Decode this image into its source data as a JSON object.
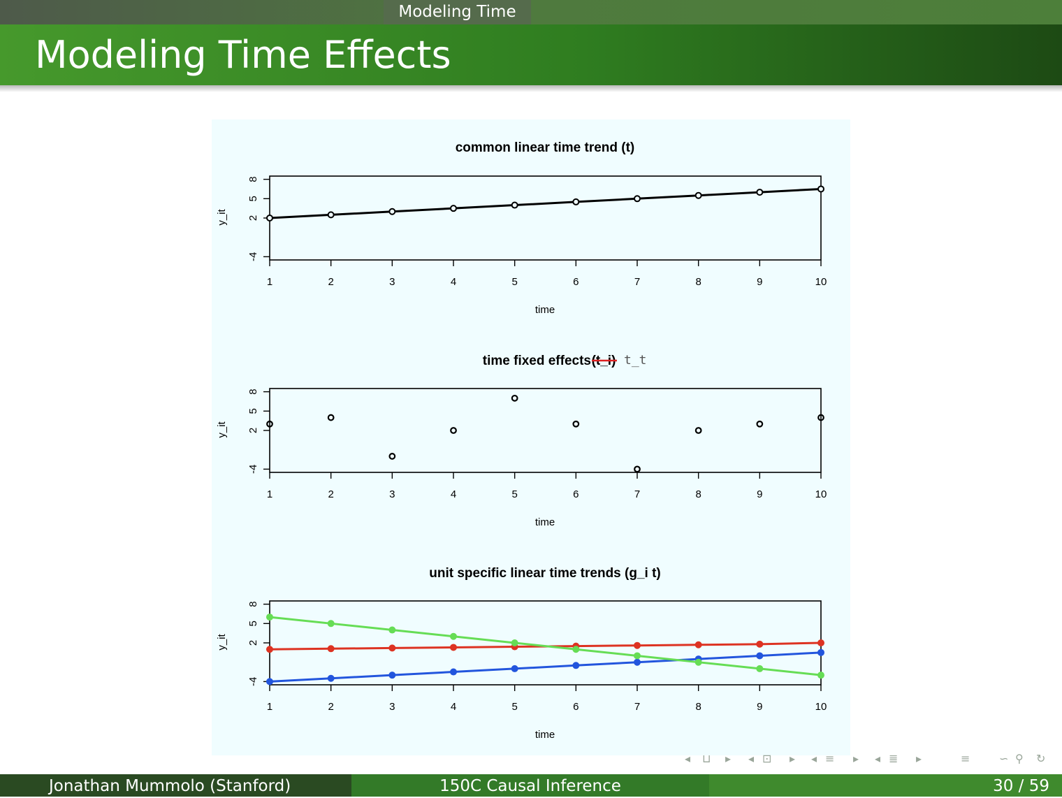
{
  "header": {
    "section": "Modeling Time",
    "title": "Modeling Time Effects"
  },
  "footer": {
    "author": "Jonathan Mummolo  (Stanford)",
    "course": "150C Causal Inference",
    "page": "30 / 59"
  },
  "nav_icons": [
    "frame-prev-icon",
    "frame-icon",
    "frame-next-icon",
    "subsection-prev-icon",
    "subsection-icon",
    "subsection-next-icon",
    "section-prev-icon",
    "section-icon",
    "section-next-icon",
    "outline-prev-icon",
    "outline-icon",
    "outline-next-icon",
    "toc-icon",
    "search-icon",
    "back-icon",
    "forward-icon"
  ],
  "chart_data": [
    {
      "type": "line",
      "title": "common linear time trend (t)",
      "xlabel": "time",
      "ylabel": "y_it",
      "xticks": [
        "1",
        "2",
        "3",
        "4",
        "5",
        "6",
        "7",
        "8",
        "9",
        "10"
      ],
      "yticks": [
        "-4",
        "2",
        "5",
        "8"
      ],
      "xlim": [
        1,
        10
      ],
      "ylim": [
        -4.5,
        8.5
      ],
      "series": [
        {
          "color": "#000000",
          "x": [
            1,
            2,
            3,
            4,
            5,
            6,
            7,
            8,
            9,
            10
          ],
          "y": [
            2.0,
            2.5,
            3.0,
            3.5,
            4.0,
            4.5,
            5.0,
            5.5,
            6.0,
            6.5
          ]
        }
      ]
    },
    {
      "type": "scatter",
      "title": "time fixed effects",
      "title_struck": "(t_i)",
      "title_annotation": "t_t",
      "xlabel": "time",
      "ylabel": "y_it",
      "xticks": [
        "1",
        "2",
        "3",
        "4",
        "5",
        "6",
        "7",
        "8",
        "9",
        "10"
      ],
      "yticks": [
        "-4",
        "2",
        "5",
        "8"
      ],
      "xlim": [
        1,
        10
      ],
      "ylim": [
        -4.5,
        8.5
      ],
      "series": [
        {
          "color": "#000000",
          "x": [
            1,
            2,
            3,
            4,
            5,
            6,
            7,
            8,
            9,
            10
          ],
          "y": [
            3,
            4,
            -2,
            2,
            7,
            3,
            -4,
            2,
            3,
            4
          ]
        }
      ]
    },
    {
      "type": "line",
      "title": "unit specific linear time trends (g_i t)",
      "xlabel": "time",
      "ylabel": "y_it",
      "xticks": [
        "1",
        "2",
        "3",
        "4",
        "5",
        "6",
        "7",
        "8",
        "9",
        "10"
      ],
      "yticks": [
        "-4",
        "2",
        "5",
        "8"
      ],
      "xlim": [
        1,
        10
      ],
      "ylim": [
        -4.5,
        8.5
      ],
      "series": [
        {
          "color": "#dd3322",
          "x": [
            1,
            2,
            3,
            4,
            5,
            6,
            7,
            8,
            9,
            10
          ],
          "y": [
            1.0,
            1.1,
            1.2,
            1.3,
            1.4,
            1.5,
            1.6,
            1.7,
            1.8,
            2.0
          ]
        },
        {
          "color": "#2255dd",
          "x": [
            1,
            2,
            3,
            4,
            5,
            6,
            7,
            8,
            9,
            10
          ],
          "y": [
            -4.0,
            -3.5,
            -3.0,
            -2.5,
            -2.0,
            -1.5,
            -1.0,
            -0.5,
            0.0,
            0.5
          ]
        },
        {
          "color": "#66dd55",
          "x": [
            1,
            2,
            3,
            4,
            5,
            6,
            7,
            8,
            9,
            10
          ],
          "y": [
            6.0,
            5.0,
            4.0,
            3.0,
            2.0,
            1.0,
            0.0,
            -1.0,
            -2.0,
            -3.0
          ]
        }
      ]
    }
  ]
}
